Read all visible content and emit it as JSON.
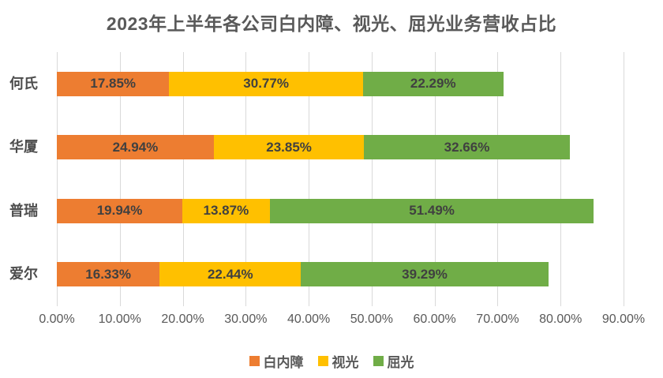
{
  "chart_data": {
    "type": "bar",
    "subtype": "horizontal-stacked",
    "title": "2023年上半年各公司白内障、视光、屈光业务营收占比",
    "categories": [
      "何氏",
      "华厦",
      "普瑞",
      "爱尔"
    ],
    "series": [
      {
        "name": "白内障",
        "color": "#ED7D31",
        "values": [
          17.85,
          24.94,
          19.94,
          16.33
        ]
      },
      {
        "name": "视光",
        "color": "#FFC000",
        "values": [
          30.77,
          23.85,
          13.87,
          22.44
        ]
      },
      {
        "name": "屈光",
        "color": "#70AD47",
        "values": [
          22.29,
          32.66,
          51.49,
          39.29
        ]
      }
    ],
    "data_labels": [
      [
        "17.85%",
        "30.77%",
        "22.29%"
      ],
      [
        "24.94%",
        "23.85%",
        "32.66%"
      ],
      [
        "19.94%",
        "13.87%",
        "51.49%"
      ],
      [
        "16.33%",
        "22.44%",
        "39.29%"
      ]
    ],
    "xlabel": "",
    "ylabel": "",
    "x_axis": {
      "min": 0,
      "max": 90,
      "step": 10,
      "tick_labels": [
        "0.00%",
        "10.00%",
        "20.00%",
        "30.00%",
        "40.00%",
        "50.00%",
        "60.00%",
        "70.00%",
        "80.00%",
        "90.00%"
      ]
    },
    "grid": true,
    "gridline_color": "#D9D9D9",
    "legend_position": "bottom",
    "text_colors": {
      "title": "#595959",
      "data_label": "#404040",
      "axis_label": "#595959",
      "category_label": "#4D4D4D"
    }
  }
}
